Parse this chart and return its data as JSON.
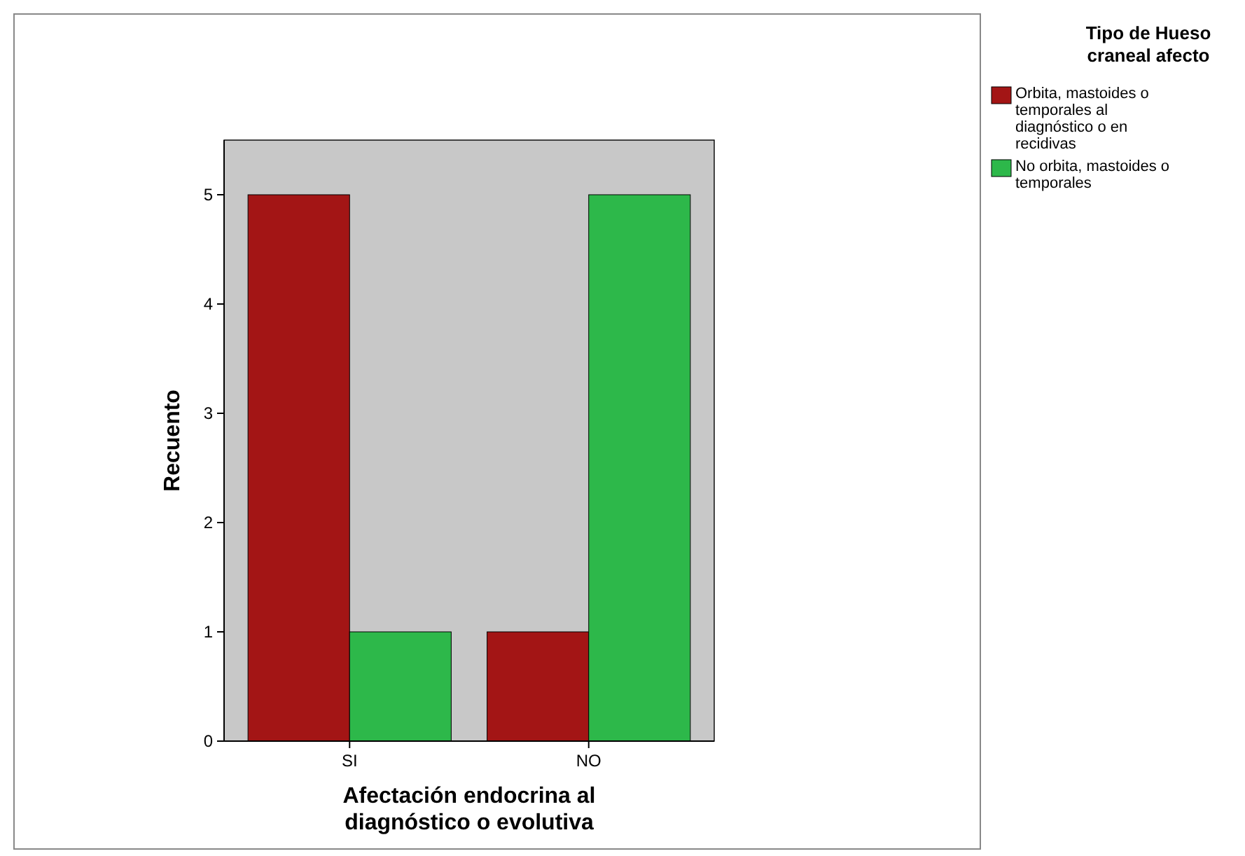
{
  "chart_data": {
    "type": "bar",
    "xlabel": "Afectación endocrina al diagnóstico o evolutiva",
    "ylabel": "Recuento",
    "legend_title": "Tipo de Hueso craneal afecto",
    "categories": [
      "SI",
      "NO"
    ],
    "series": [
      {
        "name": "Orbita, mastoides o temporales al diagnóstico o en recidivas",
        "color": "#a31515",
        "values": [
          5,
          1
        ]
      },
      {
        "name": "No orbita, mastoides o temporales",
        "color": "#2db84a",
        "values": [
          1,
          5
        ]
      }
    ],
    "ylim": [
      0,
      5.5
    ],
    "yticks": [
      0,
      1,
      2,
      3,
      4,
      5
    ],
    "legend": "top right"
  }
}
